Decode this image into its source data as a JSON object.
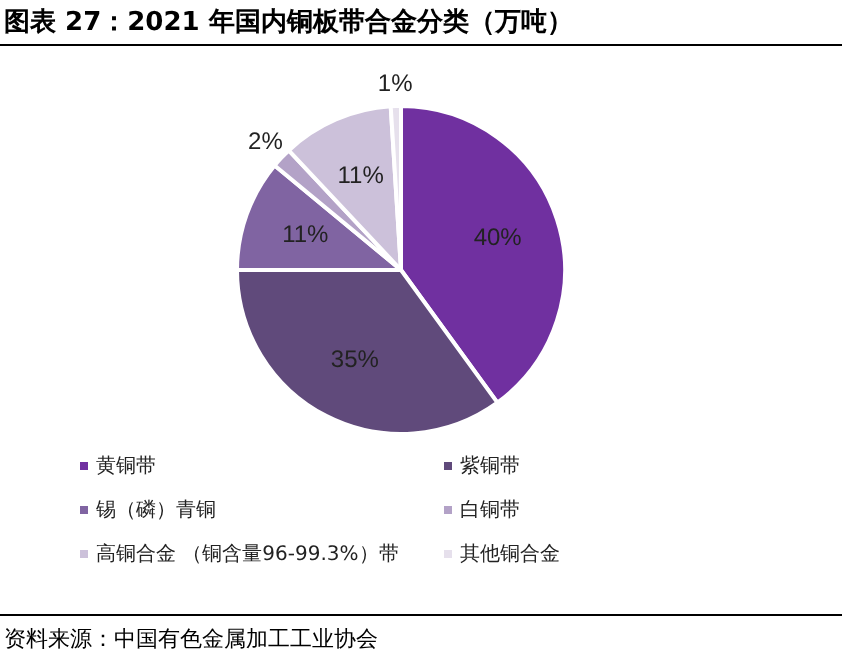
{
  "chart_data": {
    "type": "pie",
    "title": "图表 27：2021 年国内铜板带合金分类（万吨）",
    "categories": [
      "黄铜带",
      "紫铜带",
      "锡（磷）青铜",
      "白铜带",
      "高铜合金 （铜含量96-99.3%）带",
      "其他铜合金"
    ],
    "values": [
      40,
      35,
      11,
      2,
      11,
      1
    ],
    "colors": [
      "#7030a0",
      "#604a7b",
      "#8064a2",
      "#b3a2c7",
      "#ccc1da",
      "#e6e0ec"
    ],
    "value_labels": [
      "40%",
      "35%",
      "11%",
      "2%",
      "11%",
      "1%"
    ],
    "legend": "bottom",
    "annotations": [
      "资料来源：中国有色金属加工工业协会"
    ]
  }
}
